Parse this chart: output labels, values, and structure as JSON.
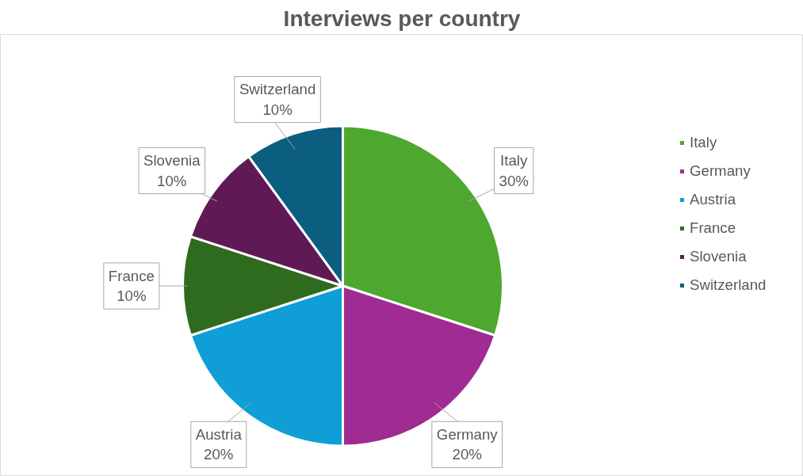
{
  "chart_data": {
    "type": "pie",
    "title": "Interviews per country",
    "categories": [
      "Italy",
      "Germany",
      "Austria",
      "France",
      "Slovenia",
      "Switzerland"
    ],
    "values": [
      30,
      20,
      20,
      10,
      10,
      10
    ],
    "colors": [
      "#4ea72e",
      "#a02b93",
      "#0f9ed5",
      "#2e6b1e",
      "#5f1a55",
      "#0b5e80"
    ],
    "value_labels": [
      "30%",
      "20%",
      "20%",
      "10%",
      "10%",
      "10%"
    ],
    "legend": "right"
  }
}
